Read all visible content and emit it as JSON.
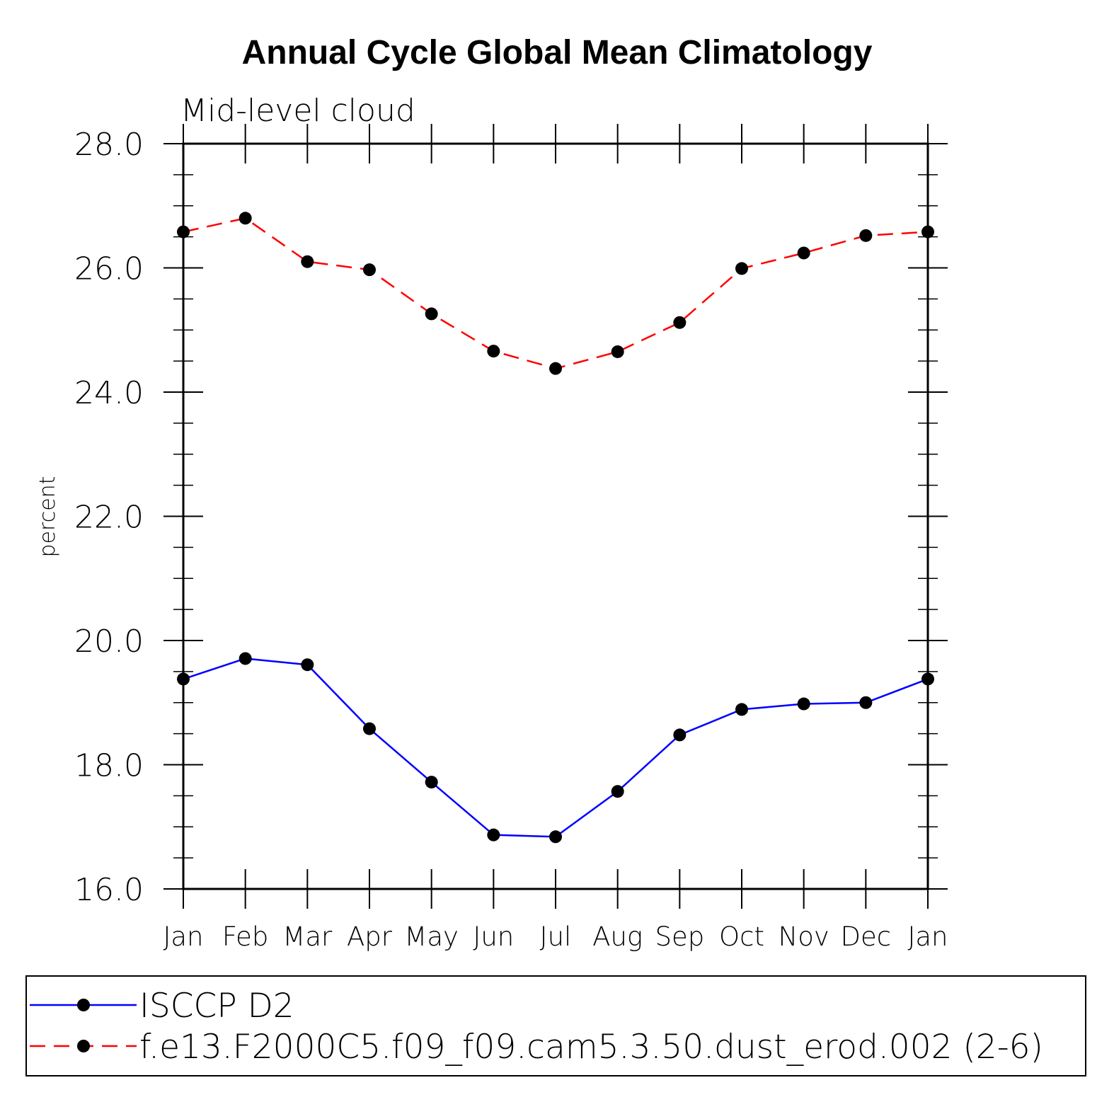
{
  "chart_data": {
    "type": "line",
    "title": "Annual Cycle Global Mean Climatology",
    "subtitle": "Mid-level cloud",
    "ylabel": "percent",
    "xlabel": "",
    "categories": [
      "Jan",
      "Feb",
      "Mar",
      "Apr",
      "May",
      "Jun",
      "Jul",
      "Aug",
      "Sep",
      "Oct",
      "Nov",
      "Dec",
      "Jan"
    ],
    "ylim": [
      16.0,
      28.0
    ],
    "yticks": [
      "16.0",
      "18.0",
      "20.0",
      "22.0",
      "24.0",
      "26.0",
      "28.0"
    ],
    "ytick_values": [
      16,
      18,
      20,
      22,
      24,
      26,
      28
    ],
    "y_minor_step": 0.5,
    "grid": false,
    "legend_position": "bottom",
    "series": [
      {
        "name": "ISCCP D2",
        "color": "#0000ff",
        "dash": "solid",
        "values": [
          19.38,
          19.71,
          19.61,
          18.58,
          17.72,
          16.87,
          16.84,
          17.57,
          18.48,
          18.89,
          18.98,
          19.0,
          19.38
        ]
      },
      {
        "name": "f.e13.F2000C5.f09_f09.cam5.3.50.dust_erod.002 (2-6)",
        "color": "#ff0000",
        "dash": "dashed",
        "values": [
          26.58,
          26.8,
          26.1,
          25.97,
          25.26,
          24.66,
          24.38,
          24.65,
          25.12,
          25.99,
          26.24,
          26.52,
          26.58
        ]
      }
    ]
  }
}
